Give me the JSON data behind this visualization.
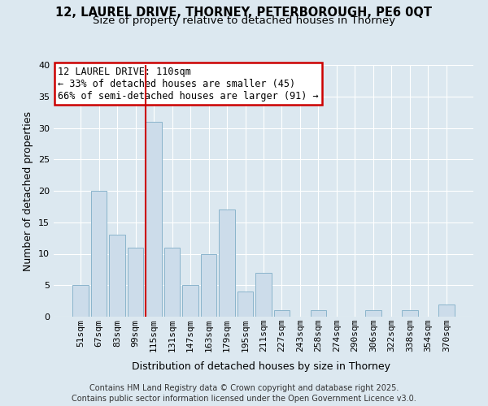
{
  "title": "12, LAUREL DRIVE, THORNEY, PETERBOROUGH, PE6 0QT",
  "subtitle": "Size of property relative to detached houses in Thorney",
  "xlabel": "Distribution of detached houses by size in Thorney",
  "ylabel": "Number of detached properties",
  "categories": [
    "51sqm",
    "67sqm",
    "83sqm",
    "99sqm",
    "115sqm",
    "131sqm",
    "147sqm",
    "163sqm",
    "179sqm",
    "195sqm",
    "211sqm",
    "227sqm",
    "243sqm",
    "258sqm",
    "274sqm",
    "290sqm",
    "306sqm",
    "322sqm",
    "338sqm",
    "354sqm",
    "370sqm"
  ],
  "values": [
    5,
    20,
    13,
    11,
    31,
    11,
    5,
    10,
    17,
    4,
    7,
    1,
    0,
    1,
    0,
    0,
    1,
    0,
    1,
    0,
    2
  ],
  "bar_color": "#ccdcea",
  "bar_edge_color": "#8ab4cc",
  "bar_edge_width": 0.7,
  "vline_color": "#cc0000",
  "annotation_line1": "12 LAUREL DRIVE: 110sqm",
  "annotation_line2": "← 33% of detached houses are smaller (45)",
  "annotation_line3": "66% of semi-detached houses are larger (91) →",
  "annotation_box_edge_color": "#cc0000",
  "ylim": [
    0,
    40
  ],
  "yticks": [
    0,
    5,
    10,
    15,
    20,
    25,
    30,
    35,
    40
  ],
  "background_color": "#dce8f0",
  "plot_background_color": "#dce8f0",
  "grid_color": "#ffffff",
  "footer_line1": "Contains HM Land Registry data © Crown copyright and database right 2025.",
  "footer_line2": "Contains public sector information licensed under the Open Government Licence v3.0.",
  "title_fontsize": 10.5,
  "subtitle_fontsize": 9.5,
  "xlabel_fontsize": 9,
  "ylabel_fontsize": 9,
  "tick_fontsize": 8,
  "annotation_fontsize": 8.5,
  "footer_fontsize": 7
}
